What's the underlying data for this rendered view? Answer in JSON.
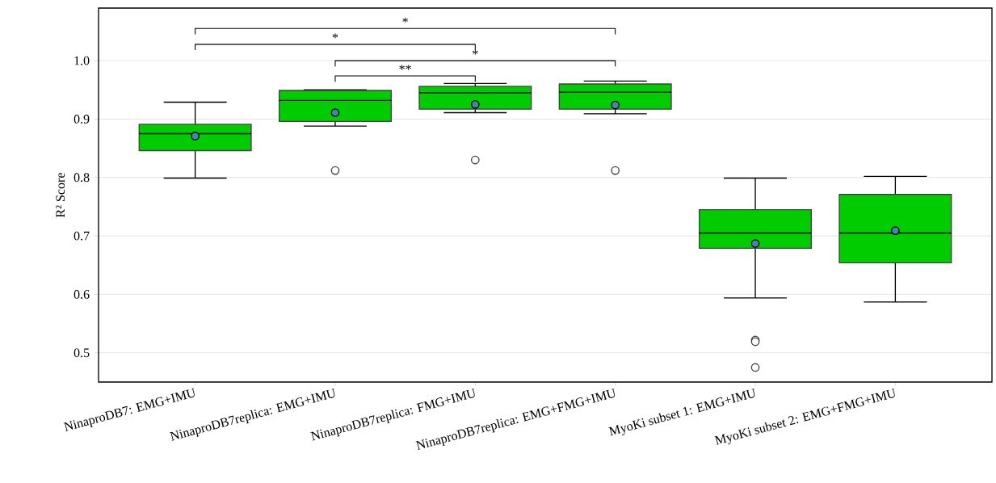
{
  "chart_data": {
    "type": "box",
    "ylabel": "R² Score",
    "categories": [
      "NinaproDB7: EMG+IMU",
      "NinaproDB7replica: EMG+IMU",
      "NinaproDB7replica: FMG+IMU",
      "NinaproDB7replica: EMG+FMG+IMU",
      "MyoKi subset 1: EMG+IMU",
      "MyoKi subset 2: EMG+FMG+IMU"
    ],
    "color": "#00cc00",
    "boxes": [
      {
        "low": 0.799,
        "q1": 0.846,
        "median": 0.875,
        "q3": 0.891,
        "high": 0.929,
        "mean": 0.871
      },
      {
        "low": 0.888,
        "q1": 0.896,
        "median": 0.932,
        "q3": 0.949,
        "high": 0.95,
        "mean": 0.911,
        "outliers": [
          0.812
        ]
      },
      {
        "low": 0.911,
        "q1": 0.917,
        "median": 0.945,
        "q3": 0.956,
        "high": 0.961,
        "mean": 0.925,
        "outliers": [
          0.83
        ]
      },
      {
        "low": 0.909,
        "q1": 0.917,
        "median": 0.946,
        "q3": 0.96,
        "high": 0.965,
        "mean": 0.924,
        "outliers": [
          0.812
        ]
      },
      {
        "low": 0.594,
        "q1": 0.679,
        "median": 0.705,
        "q3": 0.745,
        "high": 0.799,
        "mean": 0.687,
        "outliers": [
          0.522,
          0.519,
          0.475
        ]
      },
      {
        "low": 0.587,
        "q1": 0.654,
        "median": 0.705,
        "q3": 0.771,
        "high": 0.802,
        "mean": 0.709
      }
    ],
    "ylim": [
      0.45,
      1.09
    ],
    "yticks": [
      {
        "value": 0.5,
        "label": "0.5"
      },
      {
        "value": 0.6,
        "label": "0.6"
      },
      {
        "value": 0.7,
        "label": "0.7"
      },
      {
        "value": 0.8,
        "label": "0.8"
      },
      {
        "value": 0.9,
        "label": "0.9"
      },
      {
        "value": 1.0,
        "label": "1.0"
      }
    ],
    "grid": "y",
    "marker": "circle",
    "annotations": [
      "*",
      "*",
      "*",
      "**"
    ]
  }
}
